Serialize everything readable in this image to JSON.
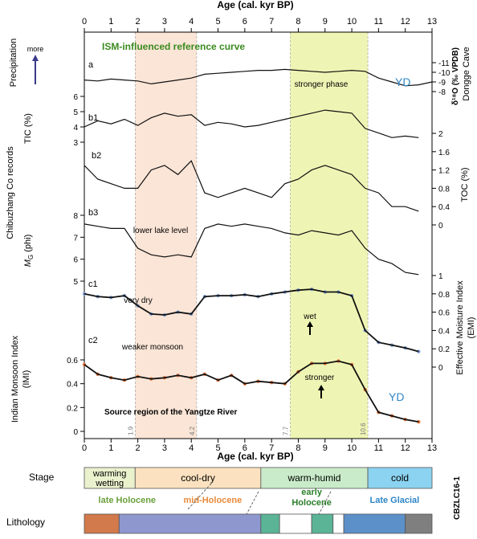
{
  "chart_data": {
    "type": "line",
    "title": "ISM-influenced reference curve",
    "x_axis": {
      "label": "Age (cal. kyr BP)",
      "range": [
        0,
        13
      ],
      "ticks": [
        "0",
        "1",
        "2",
        "3",
        "4",
        "5",
        "6",
        "7",
        "8",
        "9",
        "10",
        "11",
        "12",
        "13"
      ]
    },
    "left_axis_labels": {
      "precipitation": "Precipitation",
      "more": "more",
      "records": "Chibuzhang Co records",
      "tic": "TIC (%)",
      "mg_italic": "M",
      "mg_sub": "G",
      "mg_unit": " (phi)",
      "imi_line1": "Indian Monsoon Index",
      "imi_line2": "(IMI)"
    },
    "right_axis_labels": {
      "d18o": "δ¹⁸O (‰ VPDB)",
      "dongge": "Dongge Cave",
      "toc": "TOC (%)",
      "emi_line1": "Effective Moisture Index",
      "emi_line2": "(EMI)"
    },
    "panel_labels": [
      "a",
      "b1",
      "b2",
      "b3",
      "c1",
      "c2"
    ],
    "annotations": {
      "yd_top": "YD",
      "yd_bottom": "YD",
      "stronger_phase": "stronger phase",
      "weaker_monsoon": "weaker monsoon",
      "lower_lake_level": "lower lake level",
      "very_dry": "very dry",
      "wet": "wet",
      "stronger": "stronger",
      "source_region": "Source region of the Yangtze River"
    },
    "shaded_intervals": [
      {
        "from": 1.9,
        "to": 4.2,
        "color": "#fbe5d6",
        "label_from": "1.9",
        "label_to": "4.2"
      },
      {
        "from": 7.7,
        "to": 10.6,
        "color": "#eef5b4",
        "label_from": "7.7",
        "label_to": "10.6"
      }
    ],
    "ticks": {
      "d18o": [
        -11,
        -10,
        -9,
        -8
      ],
      "tic": [
        3,
        4,
        5,
        6
      ],
      "toc": [
        0,
        0.4,
        0.8,
        1.2,
        1.6,
        2
      ],
      "mg": [
        5,
        6,
        7,
        8
      ],
      "emi": [
        0,
        0.2,
        0.4,
        0.6,
        0.8,
        1
      ],
      "imi": [
        0,
        0.2,
        0.4,
        0.6
      ]
    },
    "tick_labels": {
      "d18o": [
        "-11",
        "-10",
        "-9",
        "-8"
      ],
      "tic": [
        "3",
        "4",
        "5",
        "6"
      ],
      "toc": [
        "0",
        "0.4",
        "0.8",
        "1.2",
        "1.6",
        "2"
      ],
      "mg": [
        "5",
        "6",
        "7",
        "8"
      ],
      "emi": [
        "0",
        "0.2",
        "0.4",
        "0.6",
        "0.8",
        "1"
      ],
      "imi": [
        "0",
        "0.2",
        "0.4",
        "0.6"
      ]
    },
    "series": [
      {
        "name": "Dongge Cave δ18O",
        "panel": "a",
        "color": "#111111",
        "x": [
          0,
          0.5,
          1,
          1.5,
          2,
          2.5,
          3,
          3.5,
          4,
          4.5,
          5,
          5.5,
          6,
          6.5,
          7,
          7.5,
          8,
          8.5,
          9,
          9.5,
          10,
          10.5,
          11,
          11.5,
          12,
          12.5,
          13
        ],
        "y": [
          -9.2,
          -9.1,
          -9.3,
          -9.2,
          -9.1,
          -8.8,
          -9.0,
          -9.2,
          -9.4,
          -9.8,
          -9.9,
          -10.0,
          -10.1,
          -10.2,
          -10.2,
          -10.3,
          -10.2,
          -10.1,
          -10.0,
          -10.1,
          -10.2,
          -10.1,
          -9.4,
          -9.0,
          -8.6,
          -8.7,
          -9.0
        ]
      },
      {
        "name": "TIC",
        "panel": "b1",
        "color": "#111111",
        "x": [
          0,
          0.5,
          1,
          1.5,
          2,
          2.5,
          3,
          3.5,
          4,
          4.5,
          5,
          5.5,
          6,
          6.5,
          7,
          7.5,
          8,
          8.5,
          9,
          9.5,
          10,
          10.5,
          11,
          11.5,
          12,
          12.5
        ],
        "y": [
          4.0,
          4.4,
          4.2,
          4.5,
          4.1,
          4.6,
          4.9,
          4.7,
          4.8,
          4.1,
          4.3,
          4.2,
          4.0,
          4.1,
          4.3,
          4.5,
          4.7,
          4.9,
          5.1,
          5.0,
          4.9,
          3.9,
          3.6,
          3.3,
          3.4,
          3.3
        ]
      },
      {
        "name": "TOC",
        "panel": "b2",
        "color": "#111111",
        "x": [
          0,
          0.5,
          1,
          1.5,
          2,
          2.5,
          3,
          3.5,
          4,
          4.5,
          5,
          5.5,
          6,
          6.5,
          7,
          7.5,
          8,
          8.5,
          9,
          9.5,
          10,
          10.5,
          11,
          11.5,
          12,
          12.5
        ],
        "y": [
          1.3,
          1.0,
          0.9,
          0.8,
          0.8,
          1.2,
          1.3,
          1.1,
          1.4,
          0.7,
          0.6,
          0.7,
          0.8,
          0.7,
          0.6,
          0.9,
          1.0,
          1.2,
          1.3,
          1.2,
          1.1,
          0.8,
          0.7,
          0.4,
          0.4,
          0.3
        ]
      },
      {
        "name": "MG",
        "panel": "b3",
        "color": "#111111",
        "x": [
          0,
          0.5,
          1,
          1.5,
          2,
          2.5,
          3,
          3.5,
          4,
          4.5,
          5,
          5.5,
          6,
          6.5,
          7,
          7.5,
          8,
          8.5,
          9,
          9.5,
          10,
          10.5,
          11,
          11.5,
          12,
          12.5
        ],
        "y": [
          7.6,
          7.5,
          7.4,
          7.4,
          6.5,
          6.2,
          6.1,
          6.2,
          6.1,
          7.4,
          7.6,
          7.5,
          7.6,
          7.5,
          7.4,
          7.2,
          7.1,
          7.3,
          7.2,
          7.1,
          7.3,
          6.5,
          6.0,
          5.8,
          5.4,
          5.3
        ]
      },
      {
        "name": "EMI",
        "panel": "c1",
        "color": "#7f9fd3",
        "smooth_color": "#111111",
        "x": [
          0,
          0.5,
          1,
          1.5,
          2,
          2.5,
          3,
          3.5,
          4,
          4.5,
          5,
          5.5,
          6,
          6.5,
          7,
          7.5,
          8,
          8.5,
          9,
          9.5,
          10,
          10.5,
          11,
          11.5,
          12,
          12.5
        ],
        "y": [
          0.8,
          0.77,
          0.76,
          0.78,
          0.67,
          0.58,
          0.57,
          0.6,
          0.58,
          0.77,
          0.78,
          0.78,
          0.79,
          0.77,
          0.8,
          0.82,
          0.84,
          0.85,
          0.82,
          0.82,
          0.78,
          0.4,
          0.27,
          0.24,
          0.21,
          0.17
        ]
      },
      {
        "name": "IMI",
        "panel": "c2",
        "color": "#e8773a",
        "smooth_color": "#111111",
        "x": [
          0,
          0.5,
          1,
          1.5,
          2,
          2.5,
          3,
          3.5,
          4,
          4.5,
          5,
          5.5,
          6,
          6.5,
          7,
          7.5,
          8,
          8.5,
          9,
          9.5,
          10,
          10.5,
          11,
          11.5,
          12,
          12.5
        ],
        "y": [
          0.56,
          0.48,
          0.45,
          0.43,
          0.46,
          0.44,
          0.45,
          0.47,
          0.45,
          0.48,
          0.43,
          0.47,
          0.4,
          0.42,
          0.41,
          0.4,
          0.5,
          0.57,
          0.57,
          0.59,
          0.56,
          0.35,
          0.16,
          0.13,
          0.1,
          0.08
        ]
      }
    ]
  },
  "stage_bar": {
    "label": "Stage",
    "segments": [
      {
        "name": "warming-wetting",
        "line1": "warming",
        "line2": "wetting",
        "from": 0,
        "to": 1.9,
        "fill": "#eaf1cd"
      },
      {
        "name": "cool-dry",
        "line1": "cool-dry",
        "line2": "",
        "from": 1.9,
        "to": 6.6,
        "fill": "#fbe1bf"
      },
      {
        "name": "warm-humid",
        "line1": "warm-humid",
        "line2": "",
        "from": 6.6,
        "to": 10.6,
        "fill": "#c9ebc9"
      },
      {
        "name": "cold",
        "line1": "cold",
        "line2": "",
        "from": 10.6,
        "to": 13,
        "fill": "#8bd3f0"
      }
    ]
  },
  "core": {
    "label": "CBZLC16-1"
  },
  "lithology": {
    "label": "Lithology",
    "period_labels": [
      {
        "name": "late-holocene",
        "text": "late Holocene",
        "line2": "",
        "color": "#6aa03b"
      },
      {
        "name": "mid-holocene",
        "text": "mid-Holocene",
        "line2": "",
        "color": "#e88a3a"
      },
      {
        "name": "early-holocene",
        "text": "early",
        "line2": "Holocene",
        "color": "#2a7f2a"
      },
      {
        "name": "late-glacial",
        "text": "Late Glacial",
        "line2": "",
        "color": "#2e86c8"
      }
    ],
    "segments": [
      {
        "name": "orange-sediment",
        "from": 0,
        "to": 1.3,
        "fill": "#d27a4b"
      },
      {
        "name": "blue-sediment",
        "from": 1.3,
        "to": 6.6,
        "fill": "#8f97cf"
      },
      {
        "name": "green-sediment",
        "from": 6.6,
        "to": 7.3,
        "fill": "#5bb496"
      },
      {
        "name": "white-sediment",
        "from": 7.3,
        "to": 8.5,
        "fill": "#ffffff"
      },
      {
        "name": "green-sediment-2",
        "from": 8.5,
        "to": 9.3,
        "fill": "#5bb496"
      },
      {
        "name": "white-sediment-2",
        "from": 9.3,
        "to": 9.7,
        "fill": "#ffffff"
      },
      {
        "name": "steelblue-sediment",
        "from": 9.7,
        "to": 12,
        "fill": "#5c90c9"
      },
      {
        "name": "gray-sediment",
        "from": 12,
        "to": 13,
        "fill": "#7f7f7f"
      }
    ]
  }
}
